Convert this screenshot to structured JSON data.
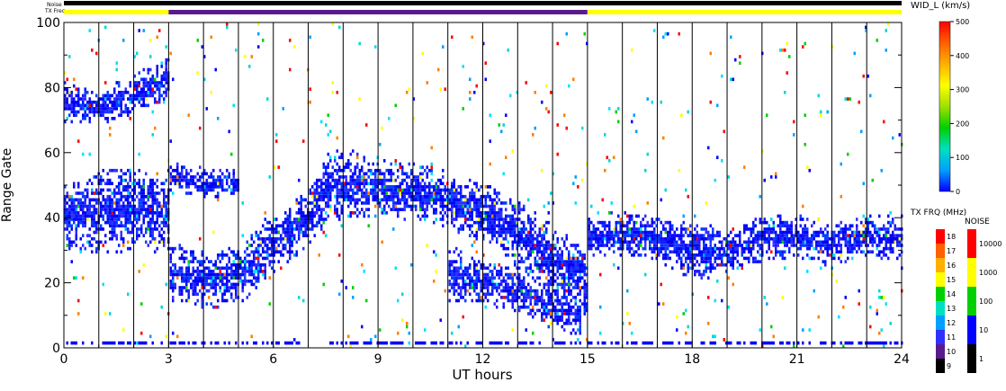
{
  "chart_data": {
    "type": "heatmap",
    "title": "",
    "xlabel": "UT hours",
    "ylabel": "Range Gate",
    "xlim": [
      0,
      24
    ],
    "ylim": [
      0,
      100
    ],
    "x_ticks": [
      0,
      3,
      6,
      9,
      12,
      15,
      18,
      21,
      24
    ],
    "y_ticks": [
      0,
      20,
      40,
      60,
      80,
      100
    ],
    "top_bars": {
      "noise_label": "Noise",
      "txfreq_label": "TX Freq",
      "txfreq_segments": [
        {
          "start": 0,
          "end": 3,
          "color": "#ffff00"
        },
        {
          "start": 3,
          "end": 15,
          "color": "#5a1a8c"
        },
        {
          "start": 15,
          "end": 24,
          "color": "#ffff00"
        }
      ]
    },
    "width_scale": {
      "label": "WID_L (km/s)",
      "ticks": [
        0,
        100,
        200,
        300,
        400,
        500
      ],
      "stops": [
        "#0000ff",
        "#00a0ff",
        "#00e0c0",
        "#00d000",
        "#a0e000",
        "#ffff00",
        "#ffb000",
        "#ff6000",
        "#ff0000"
      ]
    },
    "freq_scale": {
      "label": "TX FRQ (MHz)",
      "ticks": [
        9,
        10,
        11,
        12,
        13,
        14,
        15,
        16,
        17,
        18
      ],
      "colors": [
        "#000000",
        "#5a1a8c",
        "#3030ff",
        "#00a0ff",
        "#00e0c0",
        "#00d000",
        "#ffff00",
        "#ffb000",
        "#ff6000",
        "#ff0000"
      ]
    },
    "noise_scale": {
      "label": "NOISE",
      "ticks": [
        "1",
        "10",
        "100",
        "1000",
        "10000"
      ],
      "colors": [
        "#000000",
        "#0000ff",
        "#00d000",
        "#ffff00",
        "#ff0000"
      ]
    },
    "echo_bands": [
      {
        "t": [
          0,
          0.5,
          1.0,
          2.0,
          3.0
        ],
        "center": [
          40,
          40,
          41,
          42,
          40
        ],
        "width": [
          10,
          10,
          12,
          12,
          10
        ]
      },
      {
        "t": [
          3.0,
          4.0,
          5.0,
          6.0,
          7.0,
          7.5,
          8.0,
          9.0,
          10.0,
          11.0,
          12.0,
          13.0,
          14.0,
          15.0
        ],
        "center": [
          23,
          20,
          22,
          31,
          40,
          48,
          50,
          49,
          47,
          45,
          41,
          34,
          26,
          18
        ],
        "width": [
          8,
          8,
          8,
          8,
          8,
          10,
          10,
          8,
          8,
          8,
          8,
          10,
          10,
          10
        ]
      },
      {
        "t": [
          15.0,
          16.0,
          17.0,
          18.0,
          19.0,
          20.0,
          21.0,
          22.0,
          23.0,
          24.0
        ],
        "center": [
          33,
          35,
          33,
          29,
          29,
          33,
          34,
          31,
          34,
          33
        ],
        "width": [
          6,
          6,
          6,
          8,
          6,
          6,
          6,
          6,
          6,
          6
        ]
      },
      {
        "t": [
          0,
          1.0,
          2.0,
          3.0
        ],
        "center": [
          75,
          73,
          78,
          82
        ],
        "width": [
          6,
          4,
          6,
          6
        ]
      },
      {
        "t": [
          11.0,
          12.0,
          13.0,
          14.0,
          14.8
        ],
        "center": [
          22,
          20,
          17,
          12,
          8
        ],
        "width": [
          8,
          6,
          6,
          6,
          4
        ]
      },
      {
        "t": [
          3.0,
          4.0,
          5.0
        ],
        "center": [
          52,
          50,
          50
        ],
        "width": [
          4,
          4,
          4
        ]
      }
    ]
  }
}
